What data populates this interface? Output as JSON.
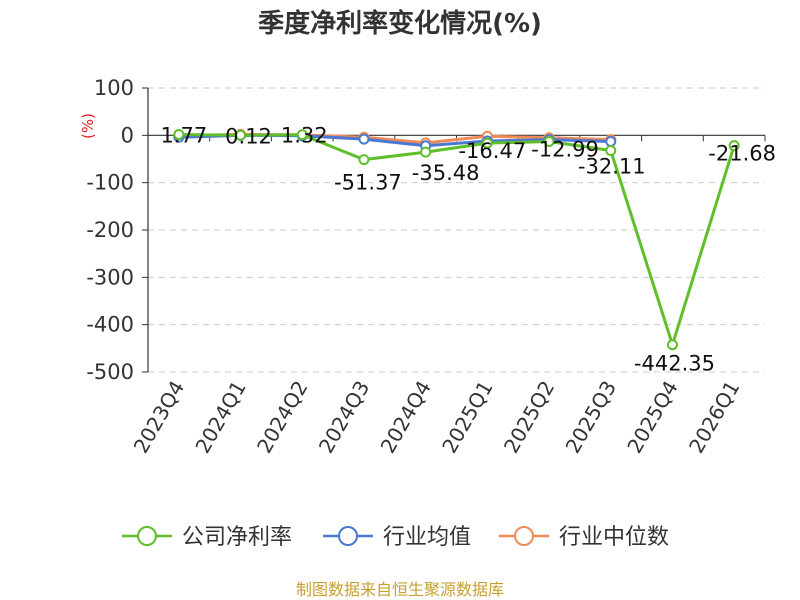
{
  "chart_data": {
    "type": "line",
    "title": "季度净利率变化情况(%)",
    "ylabel": "(%)",
    "ylim": [
      -500,
      100
    ],
    "yticks": [
      100,
      0,
      -100,
      -200,
      -300,
      -400,
      -500
    ],
    "grid": true,
    "legend_position": "bottom",
    "categories": [
      "2023Q4",
      "2024Q1",
      "2024Q2",
      "2024Q3",
      "2024Q4",
      "2025Q1",
      "2025Q2",
      "2025Q3",
      "2025Q4",
      "2026Q1"
    ],
    "series": [
      {
        "name": "公司净利率",
        "color": "#5fbf2a",
        "values": [
          1.77,
          0.12,
          1.32,
          -51.37,
          -35.48,
          -16.47,
          -12.99,
          -32.11,
          -442.35,
          -21.68
        ],
        "labels": [
          "1.77",
          "0.12",
          "1.32",
          "-51.37",
          "-35.48",
          "-16.47",
          "-12.99",
          "-32.11",
          "-442.35",
          "-21.68"
        ]
      },
      {
        "name": "行业均值",
        "color": "#4a78d4",
        "values": [
          -4,
          0,
          -1,
          -8,
          -22,
          -12,
          -9,
          -13,
          null,
          null
        ]
      },
      {
        "name": "行业中位数",
        "color": "#f08a57",
        "values": [
          -1,
          2,
          1,
          -4,
          -16,
          -2,
          -5,
          -9,
          null,
          null
        ]
      }
    ]
  },
  "source": "制图数据来自恒生聚源数据库",
  "colors": {
    "unit_label": "#e02020",
    "source_text": "#c8a030",
    "grid": "#cccccc",
    "axis": "#333333"
  }
}
